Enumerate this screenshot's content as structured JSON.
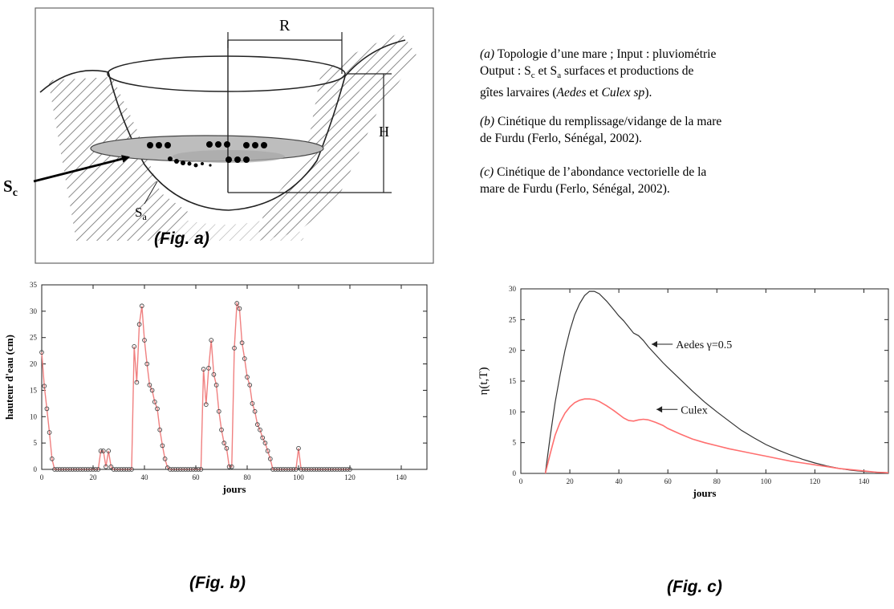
{
  "fig_a": {
    "caption": "(Fig. a)",
    "label_R": "R",
    "label_H": "H",
    "label_Sa_main": "S",
    "label_Sa_sub": "a",
    "label_Sc_main": "S",
    "label_Sc_sub": "c"
  },
  "fig_b": {
    "caption": "(Fig. b)"
  },
  "fig_c": {
    "caption": "(Fig. c)"
  },
  "legend_text": {
    "a": {
      "tag": "(a)",
      "line1": " Topologie d’une mare ; Input : pluviométrie",
      "line2_pre": "Output : S",
      "line2_sub1": "c",
      "line2_mid": " et S",
      "line2_sub2": "a",
      "line2_post": " surfaces et productions de",
      "line3_pre": "gîtes larvaires (",
      "line3_i1": "Aedes",
      "line3_mid": " et ",
      "line3_i2": "Culex sp",
      "line3_post": ")."
    },
    "b": {
      "tag": "(b)",
      "line1": " Cinétique du remplissage/vidange de la mare",
      "line2": "de Furdu (Ferlo, Sénégal, 2002)."
    },
    "c": {
      "tag": "(c)",
      "line1": " Cinétique de l’abondance vectorielle de la",
      "line2": "mare de Furdu (Ferlo, Sénégal, 2002)."
    }
  },
  "chart_data": [
    {
      "type": "line",
      "xlabel": "jours",
      "ylabel": "hauteur d'eau (cm)",
      "xlim": [
        0,
        150
      ],
      "ylim": [
        0,
        35
      ],
      "xticks": [
        0,
        20,
        40,
        60,
        80,
        100,
        120,
        140
      ],
      "yticks": [
        0,
        5,
        10,
        15,
        20,
        25,
        30,
        35
      ],
      "line_color": "#f08080",
      "marker_color": "#444444",
      "series": [
        {
          "x": [
            0,
            1,
            2,
            3,
            4,
            5,
            6,
            7,
            8,
            9,
            10,
            11,
            12,
            13,
            14,
            15,
            16,
            17,
            18,
            19,
            20,
            21,
            22,
            23,
            24,
            25,
            26,
            27,
            28,
            29,
            30,
            31,
            32,
            33,
            34,
            35,
            36,
            37,
            38,
            39,
            40,
            41,
            42,
            43,
            44,
            45,
            46,
            47,
            48,
            49,
            50,
            51,
            52,
            53,
            54,
            55,
            56,
            57,
            58,
            59,
            60,
            61,
            62,
            63,
            64,
            65,
            66,
            67,
            68,
            69,
            70,
            71,
            72,
            73,
            74,
            75,
            76,
            77,
            78,
            79,
            80,
            81,
            82,
            83,
            84,
            85,
            86,
            87,
            88,
            89,
            90,
            91,
            92,
            93,
            94,
            95,
            96,
            97,
            98,
            99,
            100,
            101,
            102,
            103,
            104,
            105,
            106,
            107,
            108,
            109,
            110,
            111,
            112,
            113,
            114,
            115,
            116,
            117,
            118,
            119,
            120
          ],
          "values": [
            22.2,
            15.8,
            11.5,
            7.0,
            2.0,
            0,
            0,
            0,
            0,
            0,
            0,
            0,
            0,
            0,
            0,
            0,
            0,
            0,
            0,
            0,
            0,
            0,
            0,
            3.5,
            3.5,
            0.5,
            3.5,
            0.5,
            0,
            0,
            0,
            0,
            0,
            0,
            0,
            0,
            23.3,
            16.5,
            27.5,
            31.0,
            24.5,
            20.0,
            16.0,
            15.0,
            12.8,
            11.5,
            7.5,
            4.5,
            2.0,
            0.3,
            0,
            0,
            0,
            0,
            0,
            0,
            0,
            0,
            0,
            0,
            0,
            0,
            0,
            19.0,
            12.3,
            19.2,
            24.5,
            18.0,
            16.0,
            11.0,
            7.5,
            5.0,
            4.0,
            0.5,
            0.5,
            23.0,
            31.5,
            30.5,
            24.0,
            21.0,
            17.5,
            16.0,
            12.5,
            11.0,
            8.5,
            7.5,
            6.0,
            5.0,
            3.5,
            2.0,
            0,
            0,
            0,
            0,
            0,
            0,
            0,
            0,
            0,
            0,
            4.0,
            0,
            0,
            0,
            0,
            0,
            0,
            0,
            0,
            0,
            0,
            0,
            0,
            0,
            0,
            0,
            0,
            0,
            0,
            0,
            0
          ]
        }
      ]
    },
    {
      "type": "line",
      "xlabel": "jours",
      "ylabel": "η(t,T)",
      "xlim": [
        0,
        150
      ],
      "ylim": [
        0,
        30
      ],
      "xticks": [
        0,
        20,
        40,
        60,
        80,
        100,
        120,
        140
      ],
      "yticks": [
        0,
        5,
        10,
        15,
        20,
        25,
        30
      ],
      "series": [
        {
          "name": "Aedes γ=0.5",
          "color": "#333333",
          "x": [
            10,
            12,
            14,
            16,
            18,
            20,
            22,
            24,
            26,
            28,
            30,
            32,
            35,
            38,
            40,
            42,
            44,
            46,
            48,
            50,
            52,
            55,
            58,
            60,
            65,
            70,
            75,
            80,
            85,
            90,
            95,
            100,
            105,
            110,
            115,
            120,
            125,
            130,
            135,
            140,
            145,
            150
          ],
          "values": [
            0,
            6.0,
            11.5,
            16.0,
            20.0,
            23.2,
            25.8,
            27.6,
            28.9,
            29.6,
            29.6,
            29.2,
            28.0,
            26.6,
            25.6,
            24.8,
            23.8,
            22.8,
            22.4,
            21.6,
            20.6,
            19.3,
            18.0,
            17.2,
            15.3,
            13.4,
            11.6,
            10.0,
            8.5,
            7.0,
            5.8,
            4.7,
            3.8,
            3.0,
            2.3,
            1.7,
            1.2,
            0.8,
            0.5,
            0.3,
            0.2,
            0.1
          ]
        },
        {
          "name": "Culex",
          "color": "#ff6f6f",
          "x": [
            10,
            12,
            14,
            16,
            18,
            20,
            22,
            24,
            26,
            28,
            30,
            32,
            35,
            38,
            40,
            42,
            44,
            46,
            48,
            50,
            52,
            55,
            58,
            60,
            65,
            70,
            75,
            80,
            85,
            90,
            95,
            100,
            105,
            110,
            115,
            120,
            125,
            130,
            135,
            140,
            145,
            150
          ],
          "values": [
            0,
            3.2,
            6.2,
            8.3,
            9.8,
            10.8,
            11.5,
            11.9,
            12.1,
            12.1,
            12.0,
            11.7,
            11.0,
            10.2,
            9.6,
            9.0,
            8.6,
            8.5,
            8.7,
            8.8,
            8.7,
            8.3,
            7.8,
            7.3,
            6.4,
            5.6,
            5.0,
            4.5,
            4.0,
            3.6,
            3.2,
            2.8,
            2.4,
            2.0,
            1.7,
            1.4,
            1.1,
            0.8,
            0.6,
            0.4,
            0.2,
            0.1
          ]
        }
      ]
    }
  ]
}
